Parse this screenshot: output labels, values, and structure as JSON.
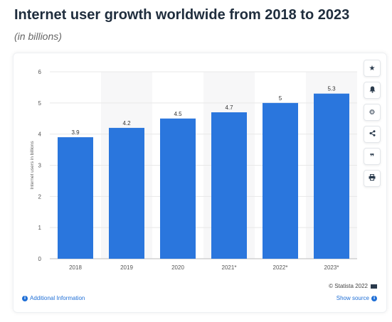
{
  "header": {
    "title": "Internet user growth worldwide from 2018 to 2023",
    "subtitle": "(in billions)"
  },
  "toolbar": {
    "buttons": [
      {
        "name": "star-icon",
        "glyph": "★"
      },
      {
        "name": "bell-icon",
        "glyph": "🔔"
      },
      {
        "name": "gear-icon",
        "glyph": "⚙"
      },
      {
        "name": "share-icon",
        "glyph": "<"
      },
      {
        "name": "quote-icon",
        "glyph": "❞"
      },
      {
        "name": "print-icon",
        "glyph": "⎙"
      }
    ]
  },
  "footer": {
    "additional_info": "Additional Information",
    "show_source": "Show source",
    "copyright": "© Statista 2022"
  },
  "colors": {
    "bar": "#2a76dd",
    "shade": "#f7f7f8",
    "grid": "#e8e8e8",
    "link": "#1f6fd6"
  },
  "chart_data": {
    "type": "bar",
    "categories": [
      "2018",
      "2019",
      "2020",
      "2021*",
      "2022*",
      "2023*"
    ],
    "values": [
      3.9,
      4.2,
      4.5,
      4.7,
      5,
      5.3
    ],
    "value_labels": [
      "3.9",
      "4.2",
      "4.5",
      "4.7",
      "5",
      "5.3"
    ],
    "ylabel": "Internet users in billions",
    "ylim": [
      0,
      6
    ],
    "yticks": [
      "0",
      "1",
      "2",
      "3",
      "4",
      "5",
      "6"
    ],
    "grid": true,
    "alternating_shade": true
  }
}
